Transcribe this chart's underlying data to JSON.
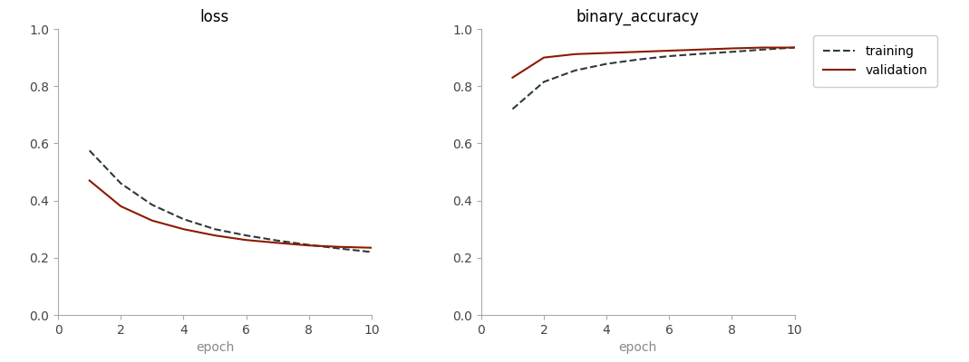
{
  "epochs": [
    1,
    2,
    3,
    4,
    5,
    6,
    7,
    8,
    9,
    10
  ],
  "loss_training": [
    0.575,
    0.46,
    0.385,
    0.335,
    0.3,
    0.278,
    0.26,
    0.245,
    0.232,
    0.22
  ],
  "loss_validation": [
    0.47,
    0.38,
    0.33,
    0.3,
    0.278,
    0.262,
    0.252,
    0.243,
    0.238,
    0.235
  ],
  "acc_training": [
    0.72,
    0.815,
    0.855,
    0.878,
    0.893,
    0.905,
    0.913,
    0.92,
    0.928,
    0.935
  ],
  "acc_validation": [
    0.83,
    0.9,
    0.912,
    0.916,
    0.92,
    0.924,
    0.928,
    0.932,
    0.935,
    0.935
  ],
  "training_color": "#2d3a3a",
  "validation_color": "#8b1a00",
  "training_label": "training",
  "validation_label": "validation",
  "loss_title": "loss",
  "acc_title": "binary_accuracy",
  "xlabel": "epoch",
  "ylim": [
    0.0,
    1.0
  ],
  "xlim": [
    0,
    10
  ],
  "title_fontsize": 12,
  "label_fontsize": 10,
  "tick_fontsize": 10,
  "legend_fontsize": 10,
  "line_width": 1.5,
  "training_linestyle": "--",
  "validation_linestyle": "-",
  "xlabel_color": "#888888",
  "tick_color": "#444444"
}
